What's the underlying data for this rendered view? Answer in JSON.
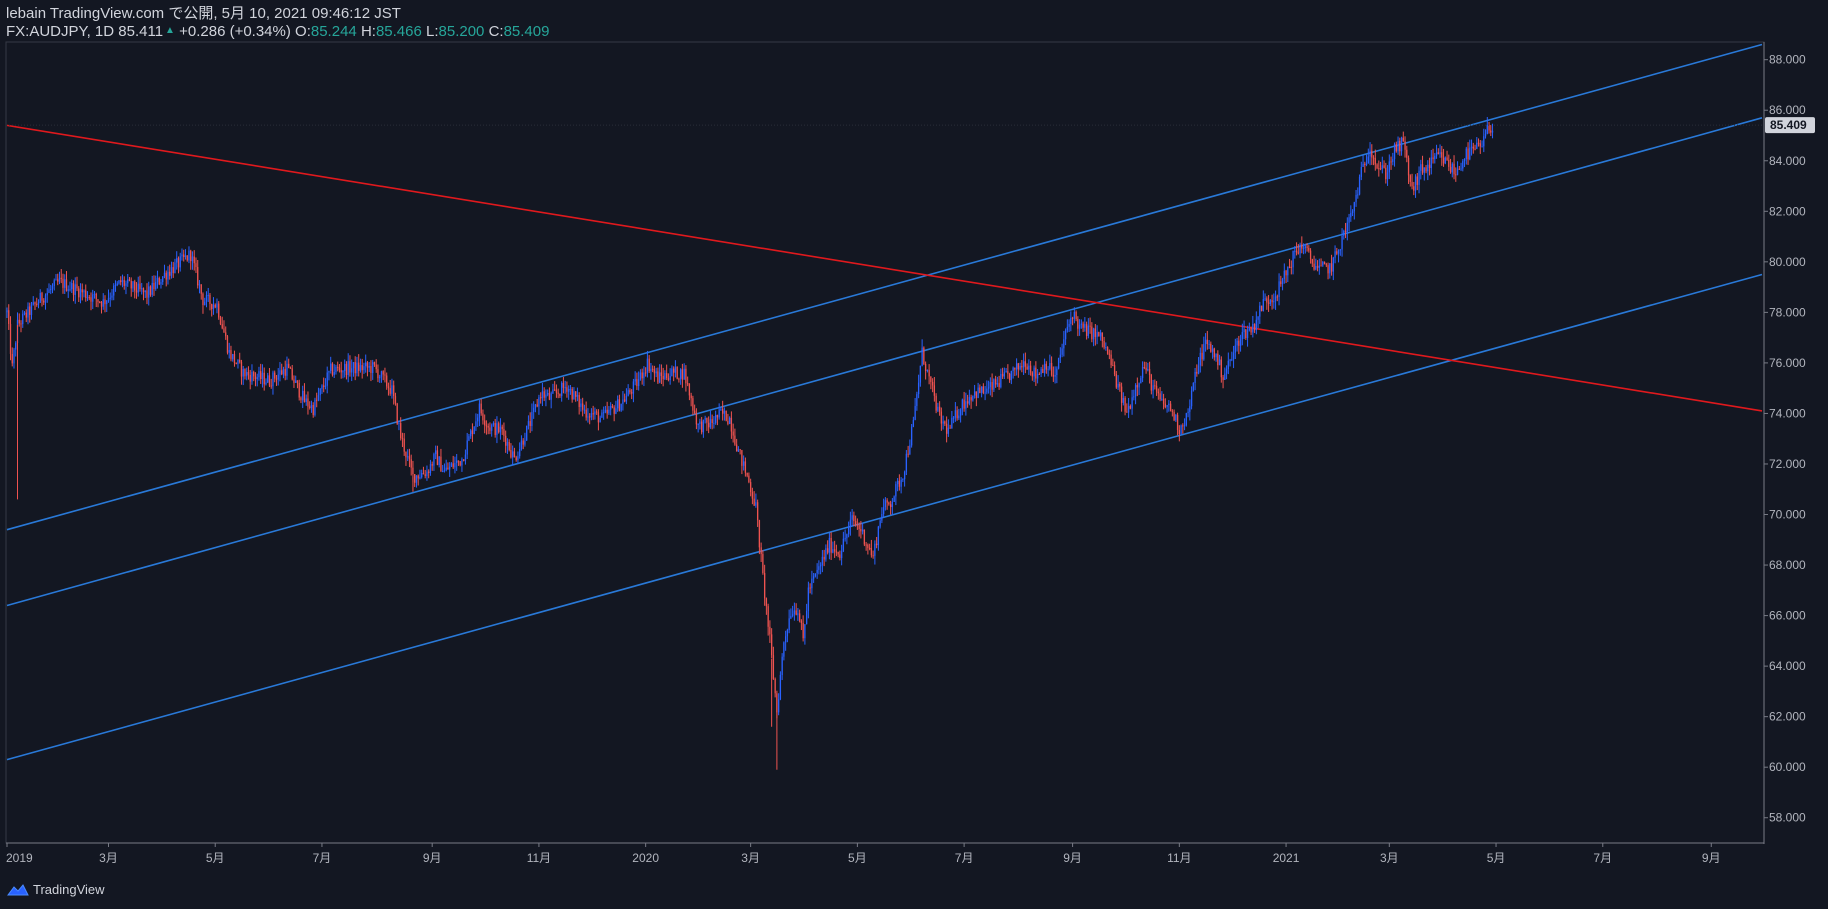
{
  "header": {
    "publisher_line": "lebain TradingView.com で公開, 5月 10, 2021 09:46:12 JST",
    "symbol": "FX:AUDJPY, 1D",
    "last_price": "85.411",
    "change": "+0.286 (+0.34%)",
    "open_label": "O:",
    "open": "85.244",
    "high_label": "H:",
    "high": "85.466",
    "low_label": "L:",
    "low": "85.200",
    "close_label": "C:",
    "close": "85.409"
  },
  "brand": {
    "name": "TradingView"
  },
  "colors": {
    "background": "#131722",
    "up": "#2962ff",
    "down": "#ef5350",
    "channel": "#2979d8",
    "trendline": "#e0191d",
    "price_tag": "#d1d4dc"
  },
  "chart_data": {
    "type": "candlestick",
    "title": "FX:AUDJPY, 1D",
    "ylim": [
      57,
      88.7
    ],
    "y_ticks": [
      "58.000",
      "60.000",
      "62.000",
      "64.000",
      "66.000",
      "68.000",
      "70.000",
      "72.000",
      "74.000",
      "76.000",
      "78.000",
      "80.000",
      "82.000",
      "84.000",
      "86.000",
      "88.000"
    ],
    "x_ticks": [
      {
        "label": "2019",
        "t": 0
      },
      {
        "label": "3月",
        "t": 58
      },
      {
        "label": "5月",
        "t": 119
      },
      {
        "label": "7月",
        "t": 180
      },
      {
        "label": "9月",
        "t": 243
      },
      {
        "label": "11月",
        "t": 304
      },
      {
        "label": "2020",
        "t": 365
      },
      {
        "label": "3月",
        "t": 425
      },
      {
        "label": "5月",
        "t": 486
      },
      {
        "label": "7月",
        "t": 547
      },
      {
        "label": "9月",
        "t": 609
      },
      {
        "label": "11月",
        "t": 670
      },
      {
        "label": "2021",
        "t": 731
      },
      {
        "label": "3月",
        "t": 790
      },
      {
        "label": "5月",
        "t": 851
      },
      {
        "label": "7月",
        "t": 912
      },
      {
        "label": "9月",
        "t": 974
      }
    ],
    "current_price": "85.409",
    "price_path": [
      [
        0,
        78.0
      ],
      [
        3,
        75.8
      ],
      [
        6,
        77.5
      ],
      [
        20,
        78.6
      ],
      [
        30,
        79.2
      ],
      [
        40,
        78.9
      ],
      [
        55,
        78.4
      ],
      [
        65,
        79.2
      ],
      [
        80,
        78.7
      ],
      [
        90,
        79.5
      ],
      [
        105,
        80.3
      ],
      [
        112,
        78.5
      ],
      [
        120,
        78.3
      ],
      [
        127,
        76.4
      ],
      [
        135,
        75.6
      ],
      [
        150,
        75.3
      ],
      [
        160,
        75.8
      ],
      [
        170,
        74.5
      ],
      [
        175,
        74.2
      ],
      [
        185,
        75.7
      ],
      [
        195,
        75.8
      ],
      [
        210,
        75.8
      ],
      [
        220,
        74.9
      ],
      [
        225,
        73.1
      ],
      [
        232,
        71.5
      ],
      [
        240,
        71.7
      ],
      [
        245,
        72.3
      ],
      [
        250,
        71.7
      ],
      [
        260,
        72.2
      ],
      [
        270,
        74.2
      ],
      [
        275,
        73.5
      ],
      [
        283,
        73.3
      ],
      [
        290,
        72.2
      ],
      [
        300,
        73.8
      ],
      [
        305,
        74.8
      ],
      [
        310,
        74.6
      ],
      [
        320,
        75.1
      ],
      [
        330,
        74.1
      ],
      [
        340,
        73.8
      ],
      [
        352,
        74.5
      ],
      [
        360,
        75.2
      ],
      [
        366,
        76.0
      ],
      [
        372,
        75.4
      ],
      [
        380,
        75.6
      ],
      [
        387,
        75.6
      ],
      [
        395,
        73.5
      ],
      [
        402,
        73.6
      ],
      [
        408,
        74.0
      ],
      [
        413,
        73.8
      ],
      [
        418,
        72.5
      ],
      [
        424,
        71.3
      ],
      [
        428,
        70.3
      ],
      [
        432,
        67.5
      ],
      [
        436,
        65.0
      ],
      [
        440,
        62.2
      ],
      [
        444,
        65.0
      ],
      [
        448,
        66.2
      ],
      [
        452,
        66.3
      ],
      [
        455,
        65.0
      ],
      [
        458,
        67.0
      ],
      [
        463,
        67.7
      ],
      [
        470,
        68.8
      ],
      [
        476,
        68.5
      ],
      [
        483,
        69.8
      ],
      [
        488,
        69.4
      ],
      [
        495,
        68.3
      ],
      [
        500,
        70.2
      ],
      [
        505,
        70.5
      ],
      [
        512,
        71.6
      ],
      [
        518,
        73.6
      ],
      [
        523,
        76.4
      ],
      [
        528,
        75.1
      ],
      [
        533,
        73.8
      ],
      [
        538,
        73.3
      ],
      [
        545,
        74.3
      ],
      [
        552,
        74.8
      ],
      [
        560,
        74.9
      ],
      [
        568,
        75.3
      ],
      [
        575,
        75.6
      ],
      [
        582,
        76.1
      ],
      [
        588,
        75.5
      ],
      [
        594,
        76.0
      ],
      [
        599,
        75.4
      ],
      [
        604,
        76.9
      ],
      [
        609,
        78.0
      ],
      [
        613,
        77.4
      ],
      [
        620,
        77.2
      ],
      [
        625,
        77.0
      ],
      [
        630,
        76.2
      ],
      [
        635,
        75.0
      ],
      [
        640,
        74.0
      ],
      [
        645,
        75.1
      ],
      [
        650,
        75.9
      ],
      [
        655,
        75.0
      ],
      [
        660,
        74.4
      ],
      [
        665,
        74.2
      ],
      [
        670,
        73.4
      ],
      [
        675,
        74.0
      ],
      [
        680,
        75.8
      ],
      [
        685,
        76.8
      ],
      [
        690,
        76.4
      ],
      [
        695,
        75.5
      ],
      [
        700,
        76.2
      ],
      [
        705,
        77.1
      ],
      [
        712,
        77.4
      ],
      [
        718,
        78.4
      ],
      [
        725,
        78.7
      ],
      [
        730,
        79.4
      ],
      [
        735,
        80.2
      ],
      [
        740,
        80.7
      ],
      [
        745,
        80.1
      ],
      [
        750,
        79.7
      ],
      [
        757,
        79.8
      ],
      [
        763,
        80.9
      ],
      [
        769,
        82.0
      ],
      [
        774,
        83.5
      ],
      [
        779,
        84.6
      ],
      [
        783,
        83.8
      ],
      [
        788,
        83.5
      ],
      [
        793,
        84.4
      ],
      [
        798,
        84.7
      ],
      [
        803,
        82.8
      ],
      [
        808,
        83.6
      ],
      [
        813,
        83.8
      ],
      [
        818,
        84.2
      ],
      [
        823,
        83.9
      ],
      [
        828,
        83.5
      ],
      [
        833,
        84.2
      ],
      [
        838,
        84.4
      ],
      [
        843,
        84.6
      ],
      [
        846,
        85.2
      ],
      [
        849,
        85.4
      ]
    ],
    "lines": [
      {
        "name": "channel-upper",
        "color": "#2979d8",
        "t1": 0,
        "p1": 69.4,
        "t2": 1003,
        "p2": 88.6
      },
      {
        "name": "channel-middle",
        "color": "#2979d8",
        "t1": 0,
        "p1": 66.4,
        "t2": 1003,
        "p2": 85.7
      },
      {
        "name": "channel-lower",
        "color": "#2979d8",
        "t1": 0,
        "p1": 60.3,
        "t2": 1003,
        "p2": 79.5
      },
      {
        "name": "trendline-red",
        "color": "#e0191d",
        "t1": 0,
        "p1": 85.4,
        "t2": 1003,
        "p2": 74.1
      }
    ],
    "candles_note": "Daily AUDJPY candles Jan 2019 – May 2021"
  }
}
